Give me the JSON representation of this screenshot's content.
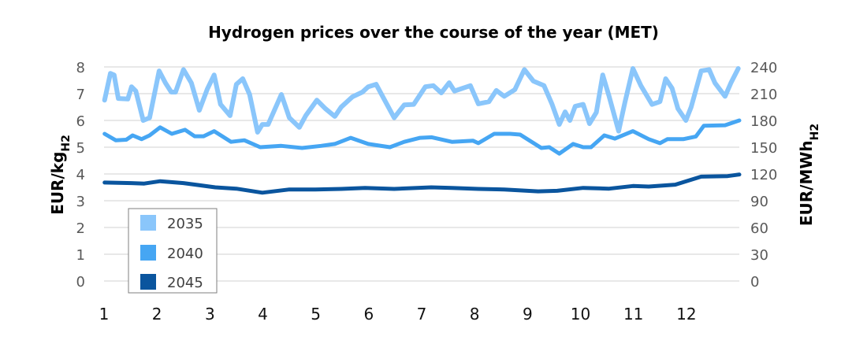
{
  "chart_data": {
    "type": "line",
    "title": "Hydrogen prices over the course of the year (MET)",
    "ylabel": "EUR/kg",
    "ylabel_sub": "H2",
    "y2label": "EUR/MWh",
    "y2label_sub": "H2",
    "xlabel": "",
    "ylim": [
      0,
      8
    ],
    "y2lim": [
      0,
      240
    ],
    "xlim": [
      1,
      13
    ],
    "yticks": [
      "0",
      "1",
      "2",
      "3",
      "4",
      "5",
      "6",
      "7",
      "8"
    ],
    "y2ticks": [
      "0",
      "30",
      "60",
      "90",
      "120",
      "150",
      "180",
      "210",
      "240"
    ],
    "xticks": [
      "1",
      "2",
      "3",
      "4",
      "5",
      "6",
      "7",
      "8",
      "9",
      "10",
      "11",
      "12"
    ],
    "grid": true,
    "legend_position": "bottom-left",
    "series": [
      {
        "name": "2035",
        "color": "#8ac6fb",
        "x": [
          1.01,
          1.12,
          1.19,
          1.27,
          1.45,
          1.52,
          1.6,
          1.74,
          1.86,
          2.04,
          2.16,
          2.27,
          2.35,
          2.5,
          2.65,
          2.8,
          2.95,
          3.08,
          3.2,
          3.38,
          3.5,
          3.62,
          3.75,
          3.9,
          3.99,
          4.1,
          4.35,
          4.5,
          4.69,
          4.81,
          5.02,
          5.18,
          5.36,
          5.48,
          5.69,
          5.88,
          5.99,
          6.14,
          6.3,
          6.48,
          6.67,
          6.85,
          7.07,
          7.22,
          7.37,
          7.52,
          7.62,
          7.92,
          8.07,
          8.27,
          8.41,
          8.56,
          8.76,
          8.94,
          9.11,
          9.31,
          9.46,
          9.6,
          9.71,
          9.8,
          9.9,
          10.05,
          10.17,
          10.3,
          10.42,
          10.54,
          10.72,
          10.84,
          10.99,
          11.14,
          11.35,
          11.5,
          11.61,
          11.73,
          11.84,
          11.99,
          12.09,
          12.28,
          12.43,
          12.54,
          12.73,
          12.84,
          12.98
        ],
        "y": [
          6.76,
          7.76,
          7.7,
          6.82,
          6.8,
          7.26,
          7.1,
          6.0,
          6.1,
          7.85,
          7.4,
          7.06,
          7.06,
          7.9,
          7.4,
          6.38,
          7.17,
          7.7,
          6.6,
          6.18,
          7.35,
          7.56,
          6.97,
          5.56,
          5.85,
          5.85,
          6.97,
          6.1,
          5.74,
          6.18,
          6.76,
          6.44,
          6.15,
          6.5,
          6.88,
          7.06,
          7.26,
          7.35,
          6.76,
          6.1,
          6.58,
          6.6,
          7.26,
          7.3,
          7.03,
          7.41,
          7.1,
          7.3,
          6.62,
          6.7,
          7.12,
          6.9,
          7.15,
          7.9,
          7.47,
          7.3,
          6.62,
          5.85,
          6.32,
          6.0,
          6.53,
          6.6,
          5.88,
          6.3,
          7.7,
          6.9,
          5.6,
          6.68,
          7.94,
          7.3,
          6.6,
          6.7,
          7.56,
          7.2,
          6.44,
          6.0,
          6.5,
          7.85,
          7.9,
          7.4,
          6.9,
          7.4,
          7.94
        ]
      },
      {
        "name": "2040",
        "color": "#46a6f3",
        "x": [
          1.01,
          1.22,
          1.42,
          1.54,
          1.71,
          1.86,
          2.06,
          2.28,
          2.53,
          2.71,
          2.88,
          3.08,
          3.4,
          3.65,
          3.95,
          4.35,
          4.74,
          5.1,
          5.36,
          5.66,
          5.99,
          6.4,
          6.67,
          6.97,
          7.19,
          7.57,
          7.97,
          8.07,
          8.37,
          8.67,
          8.86,
          9.26,
          9.41,
          9.6,
          9.86,
          10.05,
          10.2,
          10.45,
          10.65,
          10.99,
          11.29,
          11.5,
          11.64,
          11.94,
          12.18,
          12.33,
          12.73,
          13.0
        ],
        "y": [
          5.5,
          5.26,
          5.28,
          5.44,
          5.3,
          5.44,
          5.74,
          5.5,
          5.65,
          5.41,
          5.41,
          5.6,
          5.2,
          5.26,
          5.0,
          5.05,
          4.97,
          5.05,
          5.12,
          5.35,
          5.12,
          5.0,
          5.2,
          5.35,
          5.37,
          5.2,
          5.24,
          5.15,
          5.5,
          5.5,
          5.47,
          4.97,
          5.0,
          4.76,
          5.12,
          5.0,
          5.0,
          5.44,
          5.32,
          5.6,
          5.3,
          5.15,
          5.3,
          5.3,
          5.4,
          5.8,
          5.82,
          6.0
        ]
      },
      {
        "name": "2045",
        "color": "#0a559e",
        "x": [
          1.01,
          1.52,
          1.76,
          2.06,
          2.5,
          3.1,
          3.5,
          3.99,
          4.5,
          4.99,
          5.48,
          5.93,
          6.48,
          7.18,
          7.57,
          8.07,
          8.56,
          9.2,
          9.56,
          10.05,
          10.54,
          10.99,
          11.29,
          11.79,
          12.28,
          12.78,
          13.0
        ],
        "y": [
          3.68,
          3.66,
          3.64,
          3.73,
          3.66,
          3.5,
          3.45,
          3.3,
          3.42,
          3.42,
          3.44,
          3.48,
          3.44,
          3.5,
          3.48,
          3.44,
          3.42,
          3.35,
          3.37,
          3.48,
          3.45,
          3.55,
          3.53,
          3.6,
          3.9,
          3.92,
          3.98
        ]
      }
    ]
  }
}
